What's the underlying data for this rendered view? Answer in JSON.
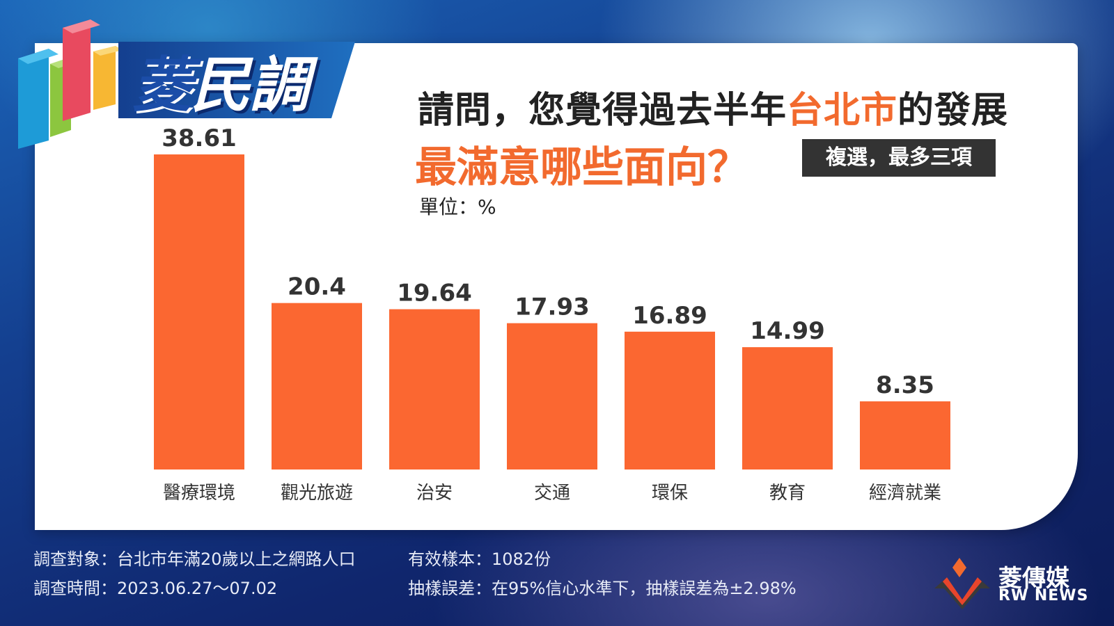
{
  "logo": {
    "text_part1": "菱",
    "text_part2": "民調"
  },
  "question": {
    "line1_before": "請問，您覺得過去半年",
    "line1_highlight": "台北市",
    "line1_after": "的發展",
    "line2": "最滿意哪些面向？",
    "badge": "複選，最多三項"
  },
  "unit_label": "單位：%",
  "colors": {
    "bar": "#fb6731",
    "accent": "#f26a2e",
    "badge_bg": "#333333"
  },
  "chart_data": {
    "type": "bar",
    "categories": [
      "醫療環境",
      "觀光旅遊",
      "治安",
      "交通",
      "環保",
      "教育",
      "經濟就業"
    ],
    "values": [
      38.61,
      20.4,
      19.64,
      17.93,
      16.89,
      14.99,
      8.35
    ],
    "value_labels": [
      "38.61",
      "20.4",
      "19.64",
      "17.93",
      "16.89",
      "14.99",
      "8.35"
    ],
    "ylim": [
      0,
      38.61
    ],
    "grid": false,
    "legend": "none"
  },
  "footer": {
    "target": "調查對象：台北市年滿20歲以上之網路人口",
    "period": "調查時間：2023.06.27～07.02",
    "sample": "有效樣本：1082份",
    "error": "抽樣誤差：在95%信心水準下，抽樣誤差為±2.98%"
  },
  "brand": {
    "name": "菱傳媒",
    "sub": "RW NEWS"
  }
}
